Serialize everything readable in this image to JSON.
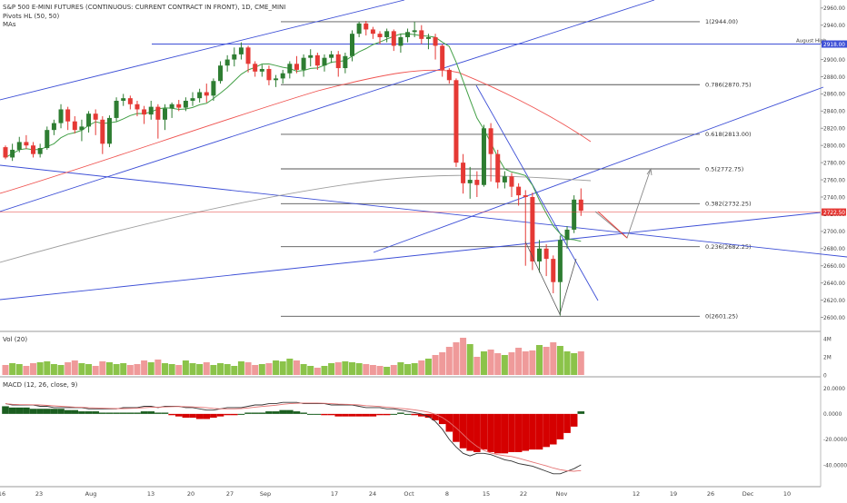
{
  "header": {
    "title": "S&P 500 E-MINI FUTURES (CONTINUOUS: CURRENT CONTRACT IN FRONT), 1D, CME_MINI",
    "indicator_pivots": "Pivots HL (50, 50)",
    "indicator_mas": "MAs"
  },
  "volume_pane": {
    "label": "Vol (20)",
    "ticks": [
      "4M",
      "2M",
      "0"
    ]
  },
  "macd_pane": {
    "label": "MACD (12, 26, close, 9)",
    "ticks": [
      "20.0000",
      "0.0000",
      "-20.0000",
      "-40.0000"
    ]
  },
  "colors": {
    "up": "#2e7d32",
    "down": "#e53935",
    "vol_up": "#8bc34a",
    "vol_down": "#ef9a9a",
    "ma_fast": "#43a047",
    "ma_mid": "#ef5350",
    "ma_slow": "#9e9e9e",
    "trend": "#3d4fd6",
    "fib": "#555555",
    "current": "#e53935"
  },
  "chart_data": {
    "type": "candlestick",
    "title": "S&P 500 E-MINI FUTURES (CONTINUOUS: CURRENT CONTRACT IN FRONT), 1D, CME_MINI",
    "x_labels": [
      "16",
      "23",
      "Aug",
      "13",
      "20",
      "27",
      "Sep",
      "17",
      "24",
      "Oct",
      "8",
      "15",
      "22",
      "Nov",
      "12",
      "19",
      "26",
      "Dec",
      "10"
    ],
    "y_ticks": [
      "2960.00",
      "2940.00",
      "2920.00",
      "2900.00",
      "2880.00",
      "2860.00",
      "2840.00",
      "2820.00",
      "2800.00",
      "2780.00",
      "2760.00",
      "2740.00",
      "2720.00",
      "2700.00",
      "2680.00",
      "2660.00",
      "2640.00",
      "2620.00",
      "2600.00"
    ],
    "ylim": [
      2591,
      2964
    ],
    "current_price": "2722.50",
    "current_price_value": 2722.5,
    "august_high_label": "August High",
    "august_high_tag": "2918.00",
    "august_high_value": 2918.0,
    "fib_levels": [
      {
        "label": "1(2944.00)",
        "value": 2944.0
      },
      {
        "label": "0.786(2870.75)",
        "value": 2870.75
      },
      {
        "label": "0.618(2813.00)",
        "value": 2813.0
      },
      {
        "label": "0.5(2772.75)",
        "value": 2772.75
      },
      {
        "label": "0.382(2732.25)",
        "value": 2732.25
      },
      {
        "label": "0.236(2682.25)",
        "value": 2682.25
      },
      {
        "label": "0(2601.25)",
        "value": 2601.25
      }
    ],
    "candles": [
      [
        2798,
        2786,
        2800,
        2784
      ],
      [
        2786,
        2795,
        2802,
        2782
      ],
      [
        2795,
        2804,
        2810,
        2792
      ],
      [
        2804,
        2800,
        2812,
        2796
      ],
      [
        2800,
        2790,
        2804,
        2786
      ],
      [
        2790,
        2797,
        2802,
        2786
      ],
      [
        2797,
        2818,
        2822,
        2795
      ],
      [
        2818,
        2826,
        2830,
        2812
      ],
      [
        2826,
        2842,
        2848,
        2820
      ],
      [
        2842,
        2828,
        2845,
        2818
      ],
      [
        2828,
        2818,
        2834,
        2814
      ],
      [
        2818,
        2822,
        2830,
        2805
      ],
      [
        2822,
        2837,
        2840,
        2815
      ],
      [
        2837,
        2830,
        2842,
        2812
      ],
      [
        2830,
        2802,
        2834,
        2790
      ],
      [
        2802,
        2832,
        2835,
        2798
      ],
      [
        2832,
        2852,
        2856,
        2828
      ],
      [
        2852,
        2855,
        2860,
        2846
      ],
      [
        2855,
        2848,
        2858,
        2842
      ],
      [
        2848,
        2842,
        2852,
        2834
      ],
      [
        2842,
        2836,
        2846,
        2825
      ],
      [
        2836,
        2845,
        2852,
        2830
      ],
      [
        2845,
        2830,
        2848,
        2808
      ],
      [
        2830,
        2843,
        2848,
        2818
      ],
      [
        2843,
        2848,
        2850,
        2832
      ],
      [
        2848,
        2844,
        2853,
        2840
      ],
      [
        2844,
        2852,
        2856,
        2840
      ],
      [
        2852,
        2855,
        2862,
        2846
      ],
      [
        2855,
        2862,
        2866,
        2850
      ],
      [
        2862,
        2858,
        2872,
        2850
      ],
      [
        2858,
        2875,
        2878,
        2852
      ],
      [
        2875,
        2893,
        2898,
        2872
      ],
      [
        2893,
        2900,
        2905,
        2886
      ],
      [
        2900,
        2906,
        2914,
        2892
      ],
      [
        2906,
        2914,
        2920,
        2900
      ],
      [
        2914,
        2895,
        2916,
        2885
      ],
      [
        2895,
        2886,
        2898,
        2880
      ],
      [
        2886,
        2889,
        2894,
        2880
      ],
      [
        2889,
        2876,
        2893,
        2870
      ],
      [
        2876,
        2878,
        2882,
        2868
      ],
      [
        2878,
        2884,
        2888,
        2872
      ],
      [
        2884,
        2895,
        2898,
        2878
      ],
      [
        2895,
        2888,
        2904,
        2884
      ],
      [
        2888,
        2902,
        2906,
        2880
      ],
      [
        2902,
        2905,
        2912,
        2892
      ],
      [
        2905,
        2893,
        2908,
        2888
      ],
      [
        2893,
        2902,
        2906,
        2886
      ],
      [
        2902,
        2906,
        2910,
        2896
      ],
      [
        2906,
        2890,
        2910,
        2880
      ],
      [
        2890,
        2904,
        2908,
        2884
      ],
      [
        2904,
        2930,
        2934,
        2898
      ],
      [
        2930,
        2942,
        2944,
        2926
      ],
      [
        2942,
        2935,
        2945,
        2928
      ],
      [
        2935,
        2930,
        2938,
        2924
      ],
      [
        2930,
        2926,
        2933,
        2918
      ],
      [
        2926,
        2933,
        2936,
        2920
      ],
      [
        2933,
        2916,
        2935,
        2910
      ],
      [
        2916,
        2926,
        2930,
        2908
      ],
      [
        2926,
        2932,
        2936,
        2920
      ],
      [
        2932,
        2934,
        2944,
        2926
      ],
      [
        2934,
        2924,
        2940,
        2918
      ],
      [
        2924,
        2926,
        2930,
        2912
      ],
      [
        2926,
        2916,
        2930,
        2900
      ],
      [
        2916,
        2888,
        2918,
        2880
      ],
      [
        2888,
        2876,
        2890,
        2872
      ],
      [
        2876,
        2780,
        2878,
        2775
      ],
      [
        2780,
        2756,
        2790,
        2744
      ],
      [
        2756,
        2760,
        2775,
        2738
      ],
      [
        2760,
        2754,
        2770,
        2740
      ],
      [
        2754,
        2820,
        2824,
        2752
      ],
      [
        2820,
        2790,
        2826,
        2758
      ],
      [
        2790,
        2757,
        2795,
        2750
      ],
      [
        2757,
        2764,
        2770,
        2750
      ],
      [
        2764,
        2752,
        2768,
        2740
      ],
      [
        2752,
        2742,
        2756,
        2730
      ],
      [
        2742,
        2740,
        2748,
        2660
      ],
      [
        2740,
        2665,
        2745,
        2655
      ],
      [
        2665,
        2680,
        2690,
        2652
      ],
      [
        2680,
        2668,
        2685,
        2648
      ],
      [
        2668,
        2641,
        2672,
        2628
      ],
      [
        2641,
        2690,
        2695,
        2602
      ],
      [
        2690,
        2702,
        2706,
        2680
      ],
      [
        2702,
        2737,
        2742,
        2698
      ],
      [
        2737,
        2724,
        2750,
        2718
      ]
    ],
    "volume_millions": [
      1.1,
      1.3,
      1.2,
      1.0,
      1.3,
      1.4,
      1.5,
      1.2,
      1.1,
      1.4,
      1.6,
      1.3,
      1.2,
      1.0,
      1.5,
      1.4,
      1.2,
      1.3,
      1.1,
      1.2,
      1.6,
      1.4,
      1.7,
      1.3,
      1.2,
      1.1,
      1.6,
      1.3,
      1.2,
      1.4,
      1.1,
      1.3,
      1.2,
      1.0,
      1.5,
      1.4,
      1.1,
      1.2,
      1.3,
      1.6,
      1.5,
      1.8,
      1.6,
      1.2,
      1.0,
      0.8,
      1.0,
      1.3,
      1.4,
      1.5,
      1.4,
      1.3,
      1.2,
      1.1,
      1.0,
      0.9,
      1.1,
      1.4,
      1.2,
      1.3,
      1.6,
      1.8,
      2.2,
      2.5,
      3.1,
      3.6,
      4.1,
      3.4,
      2.0,
      2.6,
      2.8,
      2.4,
      2.2,
      2.5,
      3.0,
      2.6,
      2.7,
      3.3,
      3.1,
      3.6,
      3.2,
      2.6,
      2.4,
      2.6
    ],
    "macd_hist": [
      6,
      5,
      5,
      5,
      4,
      4,
      4,
      4,
      4,
      3,
      3,
      2,
      2,
      2,
      1,
      1,
      1,
      1,
      1,
      1,
      2,
      2,
      1,
      1,
      -1,
      -2,
      -3,
      -3,
      -4,
      -4,
      -3,
      -2,
      -1,
      -1,
      0,
      1,
      1,
      1,
      2,
      2,
      3,
      3,
      2,
      1,
      0,
      0,
      -1,
      -1,
      -2,
      -2,
      -2,
      -2,
      -2,
      -2,
      -1,
      -1,
      0,
      1,
      0,
      -1,
      -2,
      -3,
      -5,
      -8,
      -14,
      -22,
      -27,
      -29,
      -30,
      -28,
      -30,
      -31,
      -31,
      -30,
      -30,
      -29,
      -28,
      -28,
      -26,
      -24,
      -20,
      -15,
      -10,
      2
    ],
    "macd_line": [
      8,
      7,
      7,
      7,
      7,
      6,
      6,
      5,
      5,
      5,
      5,
      5,
      4,
      4,
      4,
      4,
      4,
      5,
      5,
      5,
      6,
      6,
      5,
      6,
      6,
      6,
      5,
      5,
      4,
      3,
      3,
      4,
      5,
      5,
      5,
      6,
      7,
      7,
      8,
      8,
      9,
      9,
      9,
      8,
      8,
      8,
      8,
      7,
      7,
      7,
      7,
      6,
      5,
      5,
      5,
      4,
      4,
      3,
      2,
      1,
      0,
      -2,
      -6,
      -12,
      -20,
      -26,
      -31,
      -33,
      -31,
      -31,
      -32,
      -34,
      -36,
      -37,
      -39,
      -40,
      -41,
      -43,
      -45,
      -47,
      -47,
      -45,
      -43,
      -40
    ]
  }
}
